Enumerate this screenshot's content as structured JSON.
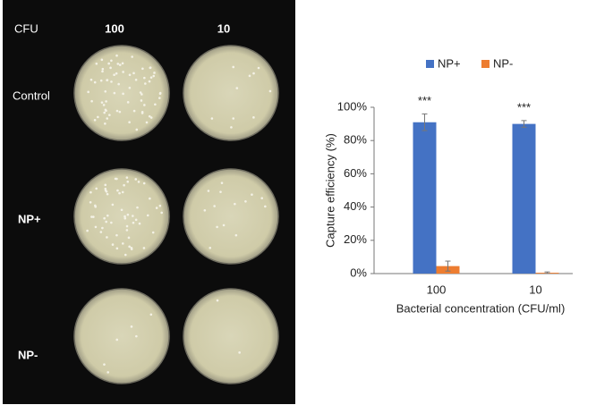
{
  "photo_panel": {
    "header": "CFU",
    "columns": [
      "100",
      "10"
    ],
    "rows": [
      "Control",
      "NP+",
      "NP-"
    ]
  },
  "chart_data": {
    "type": "bar",
    "categories": [
      "100",
      "10"
    ],
    "series": [
      {
        "name": "NP+",
        "color": "#4472c4",
        "values": [
          91,
          90
        ],
        "errors": [
          5,
          2
        ]
      },
      {
        "name": "NP-",
        "color": "#ed7d31",
        "values": [
          4.5,
          0.5
        ],
        "errors": [
          3,
          0.5
        ]
      }
    ],
    "annotations": [
      "***",
      "***"
    ],
    "ylabel": "Capture efficiency (%)",
    "xlabel": "Bacterial concentration (CFU/ml)",
    "ylim": [
      0,
      100
    ],
    "yticks": [
      {
        "value": 0,
        "label": "0%"
      },
      {
        "value": 20,
        "label": "20%"
      },
      {
        "value": 40,
        "label": "40%"
      },
      {
        "value": 60,
        "label": "60%"
      },
      {
        "value": 80,
        "label": "80%"
      },
      {
        "value": 100,
        "label": "100%"
      }
    ],
    "legend": "top"
  }
}
